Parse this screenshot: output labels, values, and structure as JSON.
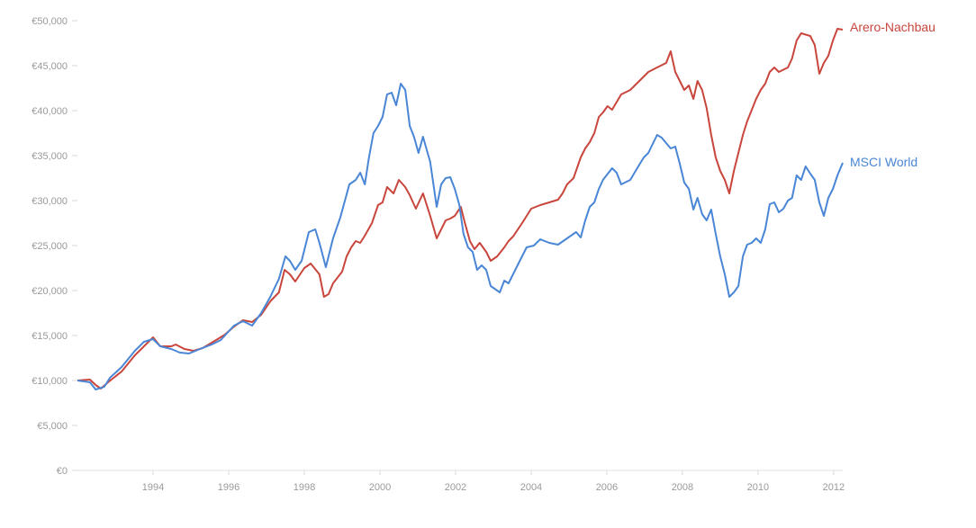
{
  "chart_data": {
    "type": "line",
    "title": "",
    "xlabel": "",
    "ylabel": "",
    "xlim": [
      1992,
      2012.24
    ],
    "ylim": [
      0,
      50000
    ],
    "grid": false,
    "legend": "inline-right",
    "x_ticks": [
      "1994",
      "1996",
      "1998",
      "2000",
      "2002",
      "2004",
      "2006",
      "2008",
      "2010",
      "2012"
    ],
    "x_tick_values": [
      1994,
      1996,
      1998,
      2000,
      2002,
      2004,
      2006,
      2008,
      2010,
      2012
    ],
    "y_ticks": [
      "€0",
      "€5,000",
      "€10,000",
      "€15,000",
      "€20,000",
      "€25,000",
      "€30,000",
      "€35,000",
      "€40,000",
      "€45,000",
      "€50,000"
    ],
    "y_tick_values": [
      0,
      5000,
      10000,
      15000,
      20000,
      25000,
      30000,
      35000,
      40000,
      45000,
      50000
    ],
    "series": [
      {
        "name": "Arero-Nachbau",
        "color": "#c9463d",
        "x": [
          1992.0,
          1992.33,
          1992.48,
          1992.62,
          1992.81,
          1993.17,
          1993.52,
          1993.76,
          1994.0,
          1994.19,
          1994.48,
          1994.6,
          1994.83,
          1995.07,
          1995.31,
          1995.67,
          1995.9,
          1996.14,
          1996.38,
          1996.62,
          1996.86,
          1997.1,
          1997.33,
          1997.48,
          1997.62,
          1997.76,
          1998.0,
          1998.17,
          1998.4,
          1998.52,
          1998.64,
          1998.76,
          1999.0,
          1999.12,
          1999.24,
          1999.36,
          1999.48,
          1999.6,
          1999.79,
          1999.95,
          2000.07,
          2000.19,
          2000.36,
          2000.5,
          2000.67,
          2000.79,
          2000.95,
          2001.14,
          2001.33,
          2001.5,
          2001.74,
          2001.86,
          2001.98,
          2002.14,
          2002.26,
          2002.38,
          2002.5,
          2002.64,
          2002.81,
          2002.93,
          2003.1,
          2003.29,
          2003.4,
          2003.52,
          2003.76,
          2004.0,
          2004.24,
          2004.48,
          2004.71,
          2004.83,
          2004.95,
          2005.12,
          2005.31,
          2005.43,
          2005.55,
          2005.67,
          2005.79,
          2005.9,
          2006.02,
          2006.14,
          2006.38,
          2006.62,
          2006.86,
          2007.1,
          2007.33,
          2007.57,
          2007.69,
          2007.81,
          2007.93,
          2008.05,
          2008.17,
          2008.29,
          2008.4,
          2008.52,
          2008.64,
          2008.76,
          2008.88,
          2009.0,
          2009.12,
          2009.24,
          2009.36,
          2009.48,
          2009.6,
          2009.71,
          2009.95,
          2010.07,
          2010.19,
          2010.31,
          2010.43,
          2010.55,
          2010.79,
          2010.9,
          2011.02,
          2011.14,
          2011.38,
          2011.5,
          2011.62,
          2011.74,
          2011.86,
          2011.98,
          2012.1,
          2012.24
        ],
        "values": [
          10000,
          10100,
          9500,
          9100,
          9800,
          11000,
          12800,
          13800,
          14800,
          13800,
          13800,
          14000,
          13500,
          13300,
          13600,
          14500,
          15100,
          16000,
          16700,
          16500,
          17300,
          18800,
          19800,
          22300,
          21800,
          21000,
          22500,
          23000,
          21800,
          19300,
          19600,
          20800,
          22100,
          23800,
          24800,
          25500,
          25300,
          26100,
          27500,
          29500,
          29800,
          31500,
          30800,
          32300,
          31500,
          30600,
          29100,
          30800,
          28300,
          25800,
          27800,
          28000,
          28300,
          29300,
          27300,
          25500,
          24600,
          25300,
          24300,
          23300,
          23800,
          24800,
          25500,
          26000,
          27500,
          29100,
          29500,
          29800,
          30100,
          30800,
          31800,
          32500,
          34800,
          35800,
          36500,
          37500,
          39300,
          39800,
          40500,
          40100,
          41800,
          42300,
          43300,
          44300,
          44800,
          45300,
          46600,
          44300,
          43300,
          42300,
          42800,
          41300,
          43300,
          42300,
          40300,
          37300,
          34800,
          33300,
          32300,
          30800,
          33300,
          35300,
          37300,
          38800,
          41300,
          42300,
          43000,
          44300,
          44800,
          44300,
          44800,
          45800,
          47800,
          48600,
          48300,
          47300,
          44100,
          45300,
          46100,
          47800,
          49100,
          49000
        ]
      },
      {
        "name": "MSCI World",
        "color": "#4a86d6",
        "x": [
          1992.0,
          1992.33,
          1992.48,
          1992.71,
          1992.86,
          1993.17,
          1993.52,
          1993.76,
          1994.0,
          1994.19,
          1994.48,
          1994.71,
          1994.95,
          1995.24,
          1995.55,
          1995.79,
          1996.14,
          1996.38,
          1996.62,
          1996.86,
          1997.1,
          1997.33,
          1997.5,
          1997.62,
          1997.76,
          1997.93,
          1998.12,
          1998.29,
          1998.4,
          1998.57,
          1998.76,
          1998.95,
          1999.19,
          1999.36,
          1999.48,
          1999.6,
          1999.71,
          1999.83,
          1999.95,
          2000.07,
          2000.19,
          2000.31,
          2000.43,
          2000.55,
          2000.67,
          2000.79,
          2000.9,
          2001.02,
          2001.14,
          2001.33,
          2001.5,
          2001.62,
          2001.74,
          2001.86,
          2001.98,
          2002.1,
          2002.21,
          2002.33,
          2002.45,
          2002.57,
          2002.69,
          2002.81,
          2002.93,
          2003.17,
          2003.29,
          2003.4,
          2003.64,
          2003.88,
          2004.07,
          2004.24,
          2004.48,
          2004.71,
          2004.95,
          2005.19,
          2005.31,
          2005.43,
          2005.55,
          2005.67,
          2005.79,
          2005.9,
          2006.14,
          2006.26,
          2006.38,
          2006.62,
          2006.86,
          2006.98,
          2007.1,
          2007.33,
          2007.45,
          2007.69,
          2007.81,
          2007.93,
          2008.05,
          2008.17,
          2008.29,
          2008.4,
          2008.52,
          2008.64,
          2008.76,
          2008.88,
          2009.0,
          2009.12,
          2009.24,
          2009.36,
          2009.48,
          2009.6,
          2009.71,
          2009.83,
          2009.95,
          2010.07,
          2010.19,
          2010.31,
          2010.43,
          2010.55,
          2010.67,
          2010.79,
          2010.9,
          2011.02,
          2011.14,
          2011.26,
          2011.38,
          2011.5,
          2011.62,
          2011.74,
          2011.86,
          2011.98,
          2012.1,
          2012.24
        ],
        "values": [
          10000,
          9800,
          9000,
          9300,
          10300,
          11500,
          13300,
          14300,
          14600,
          13800,
          13500,
          13100,
          13000,
          13500,
          14000,
          14500,
          16100,
          16600,
          16100,
          17500,
          19300,
          21300,
          23800,
          23300,
          22300,
          23300,
          26500,
          26800,
          25300,
          22600,
          25800,
          28100,
          31800,
          32300,
          33100,
          31800,
          34800,
          37500,
          38300,
          39300,
          41800,
          42000,
          40600,
          43000,
          42300,
          38300,
          37100,
          35300,
          37100,
          34300,
          29300,
          31800,
          32500,
          32600,
          31300,
          29500,
          26300,
          24800,
          24300,
          22300,
          22800,
          22300,
          20500,
          19800,
          21100,
          20800,
          22800,
          24800,
          25000,
          25700,
          25300,
          25100,
          25800,
          26500,
          25900,
          27800,
          29300,
          29800,
          31300,
          32300,
          33600,
          33100,
          31800,
          32300,
          34000,
          34800,
          35300,
          37300,
          37000,
          35800,
          36000,
          34100,
          32000,
          31300,
          29000,
          30300,
          28500,
          27800,
          29000,
          26300,
          23800,
          21800,
          19300,
          19800,
          20500,
          23800,
          25100,
          25300,
          25800,
          25300,
          26800,
          29600,
          29800,
          28700,
          29100,
          30000,
          30300,
          32800,
          32300,
          33800,
          33000,
          32300,
          29800,
          28300,
          30300,
          31300,
          32800,
          34200
        ]
      }
    ]
  }
}
